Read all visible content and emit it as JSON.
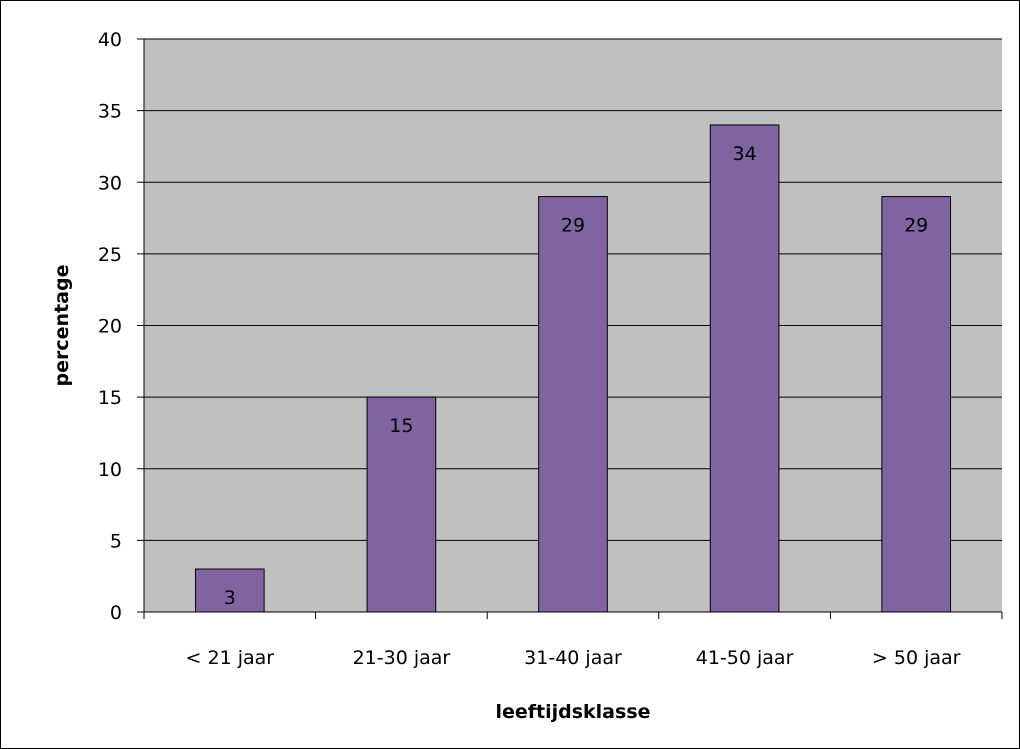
{
  "chart_data": {
    "type": "bar",
    "categories": [
      "< 21 jaar",
      "21-30 jaar",
      "31-40 jaar",
      "41-50 jaar",
      "> 50 jaar"
    ],
    "values": [
      3,
      15,
      29,
      34,
      29
    ],
    "data_labels": [
      "3",
      "15",
      "29",
      "34",
      "29"
    ],
    "xlabel": "leeftijdsklasse",
    "ylabel": "percentage",
    "ylim": [
      0,
      40
    ],
    "yticks": [
      0,
      5,
      10,
      15,
      20,
      25,
      30,
      35,
      40
    ],
    "grid": true,
    "legend": "none",
    "colors": {
      "bar": "#8064a2",
      "bar_border": "#000000",
      "plot_background": "#c0c0c0",
      "gridline": "#000000"
    }
  }
}
